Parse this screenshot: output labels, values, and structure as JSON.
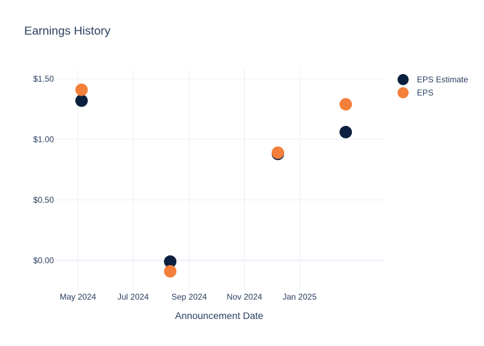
{
  "chart_data": {
    "type": "scatter",
    "title": "Earnings History",
    "xlabel": "Announcement Date",
    "ylabel": "",
    "x_type": "date",
    "xlim": [
      "2024-04-06",
      "2025-04-04"
    ],
    "ylim": [
      -0.25,
      1.58
    ],
    "x_ticks": [
      {
        "date": "2024-05-01",
        "label": "May 2024"
      },
      {
        "date": "2024-07-01",
        "label": "Jul 2024"
      },
      {
        "date": "2024-09-01",
        "label": "Sep 2024"
      },
      {
        "date": "2024-11-01",
        "label": "Nov 2024"
      },
      {
        "date": "2025-01-01",
        "label": "Jan 2025"
      }
    ],
    "y_ticks": [
      {
        "value": 0,
        "label": "$0.00"
      },
      {
        "value": 0.5,
        "label": "$0.50"
      },
      {
        "value": 1.0,
        "label": "$1.00"
      },
      {
        "value": 1.5,
        "label": "$1.50"
      }
    ],
    "grid": true,
    "legend_position": "top-right",
    "series": [
      {
        "name": "EPS Estimate",
        "color": "#0b1f3f",
        "points": [
          {
            "x": "2024-05-05",
            "y": 1.32
          },
          {
            "x": "2024-08-11",
            "y": -0.01
          },
          {
            "x": "2024-12-08",
            "y": 0.88
          },
          {
            "x": "2025-02-21",
            "y": 1.06
          }
        ]
      },
      {
        "name": "EPS",
        "color": "#f47f3a",
        "points": [
          {
            "x": "2024-05-05",
            "y": 1.41
          },
          {
            "x": "2024-08-11",
            "y": -0.09
          },
          {
            "x": "2024-12-08",
            "y": 0.89
          },
          {
            "x": "2025-02-21",
            "y": 1.29
          }
        ]
      }
    ]
  }
}
